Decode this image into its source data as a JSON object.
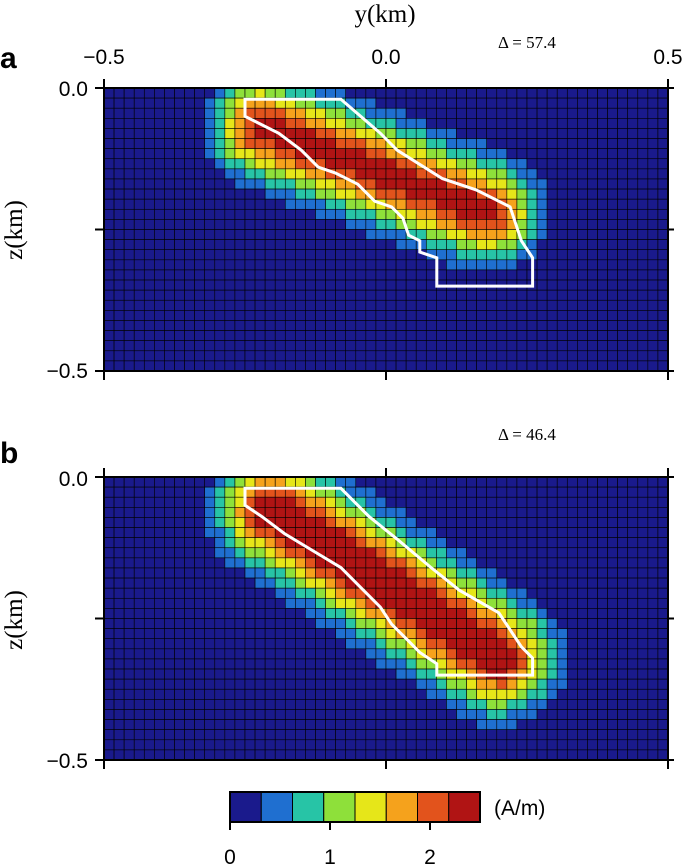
{
  "figure": {
    "xlabel": "y(km)",
    "ylabel": "z(km)",
    "x_tick_labels": [
      "−0.5",
      "0.0",
      "0.5"
    ],
    "x_ticks": [
      -0.5,
      0.0,
      0.5
    ],
    "y_tick_labels": [
      "0.0",
      "−0.5"
    ],
    "y_ticks": [
      0.0,
      -0.5
    ],
    "colorbar_unit": "(A/m)",
    "colorbar_tick_labels": [
      "0",
      "1",
      "2"
    ],
    "colorbar_ticks": [
      0,
      1,
      2
    ],
    "colorbar_range": [
      0,
      2.5
    ],
    "colorbar_colors": [
      "#1a1a8c",
      "#1f6fd0",
      "#27c4a6",
      "#8ee03a",
      "#e6e619",
      "#f5a21c",
      "#e2531c",
      "#b01414"
    ]
  },
  "chart_data": [
    {
      "type": "heatmap",
      "panel_label": "a",
      "delta_text": "Δ = 57.4",
      "xlim": [
        -0.5,
        0.5
      ],
      "ylim": [
        -0.5,
        0.0
      ],
      "grid_nx": 56,
      "grid_nz": 28,
      "background_value": 0,
      "anomaly": {
        "center_start": [
          -0.22,
          -0.07
        ],
        "center_end": [
          0.18,
          -0.22
        ],
        "peak": 2.35,
        "width": 0.055
      },
      "true_body_outline": [
        [
          -0.25,
          -0.02
        ],
        [
          -0.08,
          -0.02
        ],
        [
          -0.01,
          -0.08
        ],
        [
          0.02,
          -0.11
        ],
        [
          0.1,
          -0.16
        ],
        [
          0.16,
          -0.18
        ],
        [
          0.22,
          -0.21
        ],
        [
          0.24,
          -0.27
        ],
        [
          0.26,
          -0.3
        ],
        [
          0.26,
          -0.35
        ],
        [
          0.09,
          -0.35
        ],
        [
          0.09,
          -0.3
        ],
        [
          0.06,
          -0.29
        ],
        [
          0.06,
          -0.27
        ],
        [
          0.04,
          -0.26
        ],
        [
          0.03,
          -0.23
        ],
        [
          0.01,
          -0.21
        ],
        [
          -0.02,
          -0.2
        ],
        [
          -0.05,
          -0.17
        ],
        [
          -0.09,
          -0.15
        ],
        [
          -0.12,
          -0.14
        ],
        [
          -0.15,
          -0.11
        ],
        [
          -0.19,
          -0.08
        ],
        [
          -0.23,
          -0.06
        ],
        [
          -0.25,
          -0.05
        ]
      ]
    },
    {
      "type": "heatmap",
      "panel_label": "b",
      "delta_text": "Δ = 46.4",
      "xlim": [
        -0.5,
        0.5
      ],
      "ylim": [
        -0.5,
        0.0
      ],
      "grid_nx": 56,
      "grid_nz": 28,
      "background_value": 0,
      "anomaly": {
        "center_start": [
          -0.2,
          -0.06
        ],
        "center_end": [
          0.2,
          -0.32
        ],
        "peak": 2.55,
        "width": 0.06
      },
      "true_body_outline": [
        [
          -0.25,
          -0.02
        ],
        [
          -0.08,
          -0.02
        ],
        [
          -0.03,
          -0.07
        ],
        [
          0.02,
          -0.11
        ],
        [
          0.08,
          -0.16
        ],
        [
          0.13,
          -0.2
        ],
        [
          0.2,
          -0.24
        ],
        [
          0.22,
          -0.27
        ],
        [
          0.24,
          -0.3
        ],
        [
          0.26,
          -0.32
        ],
        [
          0.26,
          -0.35
        ],
        [
          0.09,
          -0.35
        ],
        [
          0.09,
          -0.33
        ],
        [
          0.06,
          -0.31
        ],
        [
          0.04,
          -0.29
        ],
        [
          0.01,
          -0.26
        ],
        [
          -0.01,
          -0.23
        ],
        [
          -0.04,
          -0.2
        ],
        [
          -0.08,
          -0.16
        ],
        [
          -0.13,
          -0.13
        ],
        [
          -0.18,
          -0.1
        ],
        [
          -0.22,
          -0.07
        ],
        [
          -0.25,
          -0.05
        ]
      ]
    }
  ]
}
